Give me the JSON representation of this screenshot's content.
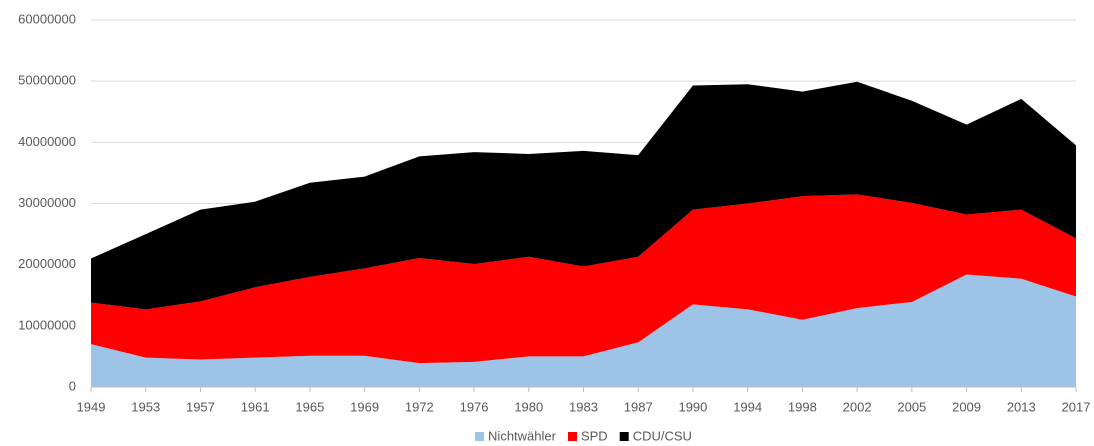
{
  "chart_data": {
    "type": "stacked-area",
    "categories": [
      "1949",
      "1953",
      "1957",
      "1961",
      "1965",
      "1969",
      "1972",
      "1976",
      "1980",
      "1983",
      "1987",
      "1990",
      "1994",
      "1998",
      "2002",
      "2005",
      "2009",
      "2013",
      "2017"
    ],
    "series": [
      {
        "name": "Nichtwähler",
        "color": "#9dc3e6",
        "values": [
          7000000,
          4800000,
          4500000,
          4800000,
          5100000,
          5100000,
          3900000,
          4100000,
          5000000,
          5000000,
          7300000,
          13500000,
          12700000,
          11000000,
          12900000,
          13900000,
          18400000,
          17700000,
          14800000
        ]
      },
      {
        "name": "SPD",
        "color": "#ff0000",
        "values": [
          6800000,
          7900000,
          9500000,
          11500000,
          12900000,
          14300000,
          17200000,
          16000000,
          16300000,
          14700000,
          14000000,
          15500000,
          17300000,
          20200000,
          18600000,
          16200000,
          9800000,
          11300000,
          9500000
        ]
      },
      {
        "name": "CDU/CSU",
        "color": "#000000",
        "values": [
          7200000,
          12300000,
          15000000,
          14000000,
          15400000,
          15000000,
          16600000,
          18300000,
          16800000,
          18900000,
          16600000,
          20300000,
          19500000,
          17100000,
          18400000,
          16700000,
          14700000,
          18100000,
          15200000
        ]
      }
    ],
    "ylim": [
      0,
      60000000
    ],
    "yticks": [
      0,
      10000000,
      20000000,
      30000000,
      40000000,
      50000000,
      60000000
    ],
    "grid": true,
    "legend": "bottom"
  }
}
